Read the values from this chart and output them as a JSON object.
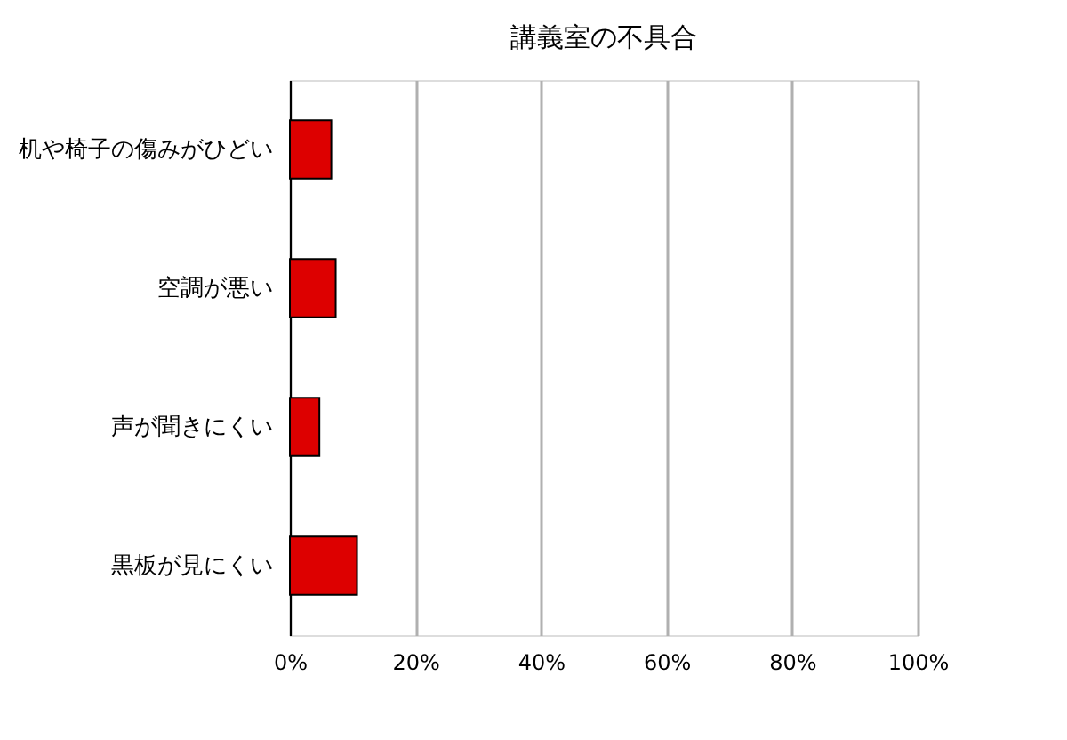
{
  "chart_data": {
    "type": "bar",
    "orientation": "horizontal",
    "title": "講義室の不具合",
    "categories": [
      "机や椅子の傷みがひどい",
      "空調が悪い",
      "声が聞きにくい",
      "黒板が見にくい"
    ],
    "values": [
      6.6,
      7.3,
      4.7,
      10.7
    ],
    "color": "#dd0000",
    "xlim": [
      0,
      100
    ],
    "xticks": [
      {
        "value": 0,
        "label": "0%"
      },
      {
        "value": 20,
        "label": "20%"
      },
      {
        "value": 40,
        "label": "40%"
      },
      {
        "value": 60,
        "label": "60%"
      },
      {
        "value": 80,
        "label": "80%"
      },
      {
        "value": 100,
        "label": "100%"
      }
    ],
    "grid": "x"
  }
}
